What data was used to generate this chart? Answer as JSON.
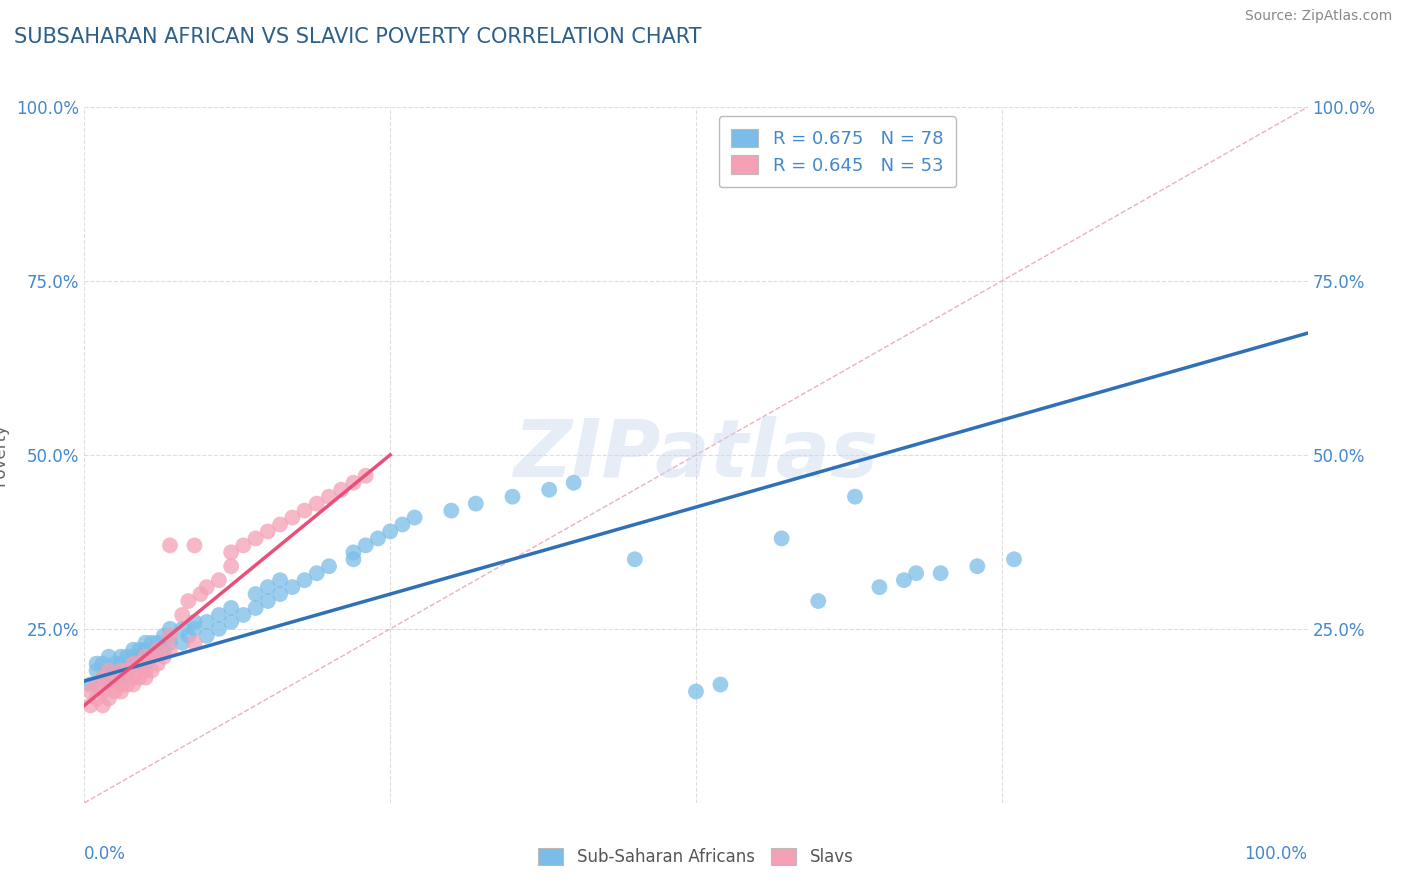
{
  "title": "SUBSAHARAN AFRICAN VS SLAVIC POVERTY CORRELATION CHART",
  "source": "Source: ZipAtlas.com",
  "ylabel": "Poverty",
  "xlim": [
    0,
    1
  ],
  "ylim": [
    0,
    1
  ],
  "legend1_R": "0.675",
  "legend1_N": "78",
  "legend2_R": "0.645",
  "legend2_N": "53",
  "legend_label1": "Sub-Saharan Africans",
  "legend_label2": "Slavs",
  "color_blue": "#7bbde8",
  "color_pink": "#f4a0b5",
  "color_blue_line": "#3070b8",
  "color_pink_line": "#e8507a",
  "color_diag": "#cccccc",
  "watermark": "ZIPatlas",
  "blue_points": [
    [
      0.005,
      0.17
    ],
    [
      0.01,
      0.19
    ],
    [
      0.01,
      0.2
    ],
    [
      0.015,
      0.18
    ],
    [
      0.015,
      0.2
    ],
    [
      0.02,
      0.18
    ],
    [
      0.02,
      0.19
    ],
    [
      0.02,
      0.21
    ],
    [
      0.025,
      0.19
    ],
    [
      0.025,
      0.2
    ],
    [
      0.03,
      0.18
    ],
    [
      0.03,
      0.2
    ],
    [
      0.03,
      0.21
    ],
    [
      0.035,
      0.19
    ],
    [
      0.035,
      0.21
    ],
    [
      0.04,
      0.2
    ],
    [
      0.04,
      0.21
    ],
    [
      0.04,
      0.22
    ],
    [
      0.045,
      0.21
    ],
    [
      0.045,
      0.22
    ],
    [
      0.05,
      0.2
    ],
    [
      0.05,
      0.22
    ],
    [
      0.05,
      0.23
    ],
    [
      0.055,
      0.21
    ],
    [
      0.055,
      0.23
    ],
    [
      0.06,
      0.22
    ],
    [
      0.06,
      0.23
    ],
    [
      0.065,
      0.22
    ],
    [
      0.065,
      0.24
    ],
    [
      0.07,
      0.23
    ],
    [
      0.07,
      0.24
    ],
    [
      0.07,
      0.25
    ],
    [
      0.08,
      0.23
    ],
    [
      0.08,
      0.25
    ],
    [
      0.085,
      0.24
    ],
    [
      0.09,
      0.25
    ],
    [
      0.09,
      0.26
    ],
    [
      0.1,
      0.24
    ],
    [
      0.1,
      0.26
    ],
    [
      0.11,
      0.25
    ],
    [
      0.11,
      0.27
    ],
    [
      0.12,
      0.26
    ],
    [
      0.12,
      0.28
    ],
    [
      0.13,
      0.27
    ],
    [
      0.14,
      0.28
    ],
    [
      0.14,
      0.3
    ],
    [
      0.15,
      0.29
    ],
    [
      0.15,
      0.31
    ],
    [
      0.16,
      0.3
    ],
    [
      0.16,
      0.32
    ],
    [
      0.17,
      0.31
    ],
    [
      0.18,
      0.32
    ],
    [
      0.19,
      0.33
    ],
    [
      0.2,
      0.34
    ],
    [
      0.22,
      0.35
    ],
    [
      0.22,
      0.36
    ],
    [
      0.23,
      0.37
    ],
    [
      0.24,
      0.38
    ],
    [
      0.25,
      0.39
    ],
    [
      0.26,
      0.4
    ],
    [
      0.27,
      0.41
    ],
    [
      0.3,
      0.42
    ],
    [
      0.32,
      0.43
    ],
    [
      0.35,
      0.44
    ],
    [
      0.38,
      0.45
    ],
    [
      0.4,
      0.46
    ],
    [
      0.45,
      0.35
    ],
    [
      0.5,
      0.16
    ],
    [
      0.52,
      0.17
    ],
    [
      0.57,
      0.38
    ],
    [
      0.6,
      0.29
    ],
    [
      0.63,
      0.44
    ],
    [
      0.65,
      0.31
    ],
    [
      0.67,
      0.32
    ],
    [
      0.68,
      0.33
    ],
    [
      0.7,
      0.33
    ],
    [
      0.73,
      0.34
    ],
    [
      0.76,
      0.35
    ]
  ],
  "pink_points": [
    [
      0.005,
      0.14
    ],
    [
      0.005,
      0.16
    ],
    [
      0.01,
      0.15
    ],
    [
      0.01,
      0.17
    ],
    [
      0.015,
      0.14
    ],
    [
      0.015,
      0.16
    ],
    [
      0.015,
      0.18
    ],
    [
      0.02,
      0.15
    ],
    [
      0.02,
      0.17
    ],
    [
      0.02,
      0.19
    ],
    [
      0.025,
      0.16
    ],
    [
      0.025,
      0.18
    ],
    [
      0.03,
      0.16
    ],
    [
      0.03,
      0.17
    ],
    [
      0.03,
      0.19
    ],
    [
      0.035,
      0.17
    ],
    [
      0.035,
      0.19
    ],
    [
      0.04,
      0.17
    ],
    [
      0.04,
      0.18
    ],
    [
      0.04,
      0.2
    ],
    [
      0.045,
      0.18
    ],
    [
      0.045,
      0.2
    ],
    [
      0.05,
      0.18
    ],
    [
      0.05,
      0.19
    ],
    [
      0.05,
      0.21
    ],
    [
      0.055,
      0.19
    ],
    [
      0.055,
      0.21
    ],
    [
      0.06,
      0.2
    ],
    [
      0.06,
      0.22
    ],
    [
      0.065,
      0.21
    ],
    [
      0.07,
      0.22
    ],
    [
      0.07,
      0.24
    ],
    [
      0.08,
      0.27
    ],
    [
      0.085,
      0.29
    ],
    [
      0.09,
      0.23
    ],
    [
      0.095,
      0.3
    ],
    [
      0.1,
      0.31
    ],
    [
      0.11,
      0.32
    ],
    [
      0.12,
      0.34
    ],
    [
      0.12,
      0.36
    ],
    [
      0.13,
      0.37
    ],
    [
      0.14,
      0.38
    ],
    [
      0.15,
      0.39
    ],
    [
      0.16,
      0.4
    ],
    [
      0.17,
      0.41
    ],
    [
      0.18,
      0.42
    ],
    [
      0.19,
      0.43
    ],
    [
      0.2,
      0.44
    ],
    [
      0.21,
      0.45
    ],
    [
      0.22,
      0.46
    ],
    [
      0.23,
      0.47
    ],
    [
      0.09,
      0.37
    ],
    [
      0.07,
      0.37
    ]
  ],
  "blue_line_x": [
    0.0,
    1.0
  ],
  "blue_line_y": [
    0.175,
    0.675
  ],
  "pink_line_x": [
    0.0,
    0.25
  ],
  "pink_line_y": [
    0.14,
    0.5
  ],
  "grid_color": "#dddddd",
  "background_color": "#ffffff",
  "title_color": "#2c5f8a",
  "source_color": "#888888",
  "axis_color": "#4488cc"
}
